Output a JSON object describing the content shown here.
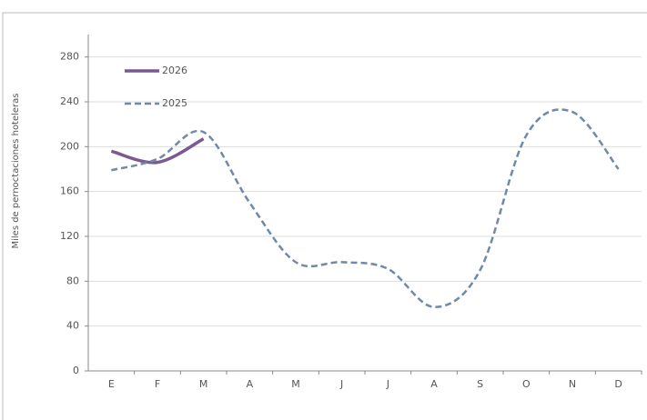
{
  "chart_data": {
    "type": "line",
    "y_label": "Miles de pernoctaciones  hoteleras",
    "categories": [
      "E",
      "F",
      "M",
      "A",
      "M",
      "J",
      "J",
      "A",
      "S",
      "O",
      "N",
      "D"
    ],
    "series": [
      {
        "name": "2026",
        "color": "#7b5a94",
        "dashed": false,
        "values": [
          196,
          186,
          207,
          null,
          null,
          null,
          null,
          null,
          null,
          null,
          null,
          null
        ]
      },
      {
        "name": "2025",
        "color": "#7089a8",
        "dashed": true,
        "values": [
          179,
          189,
          213,
          150,
          97,
          97,
          91,
          57,
          90,
          210,
          231,
          180
        ]
      }
    ],
    "ylim": [
      0,
      300
    ],
    "yticks": [
      0,
      40,
      80,
      120,
      160,
      200,
      240,
      280
    ],
    "grid": true,
    "smooth": true
  }
}
